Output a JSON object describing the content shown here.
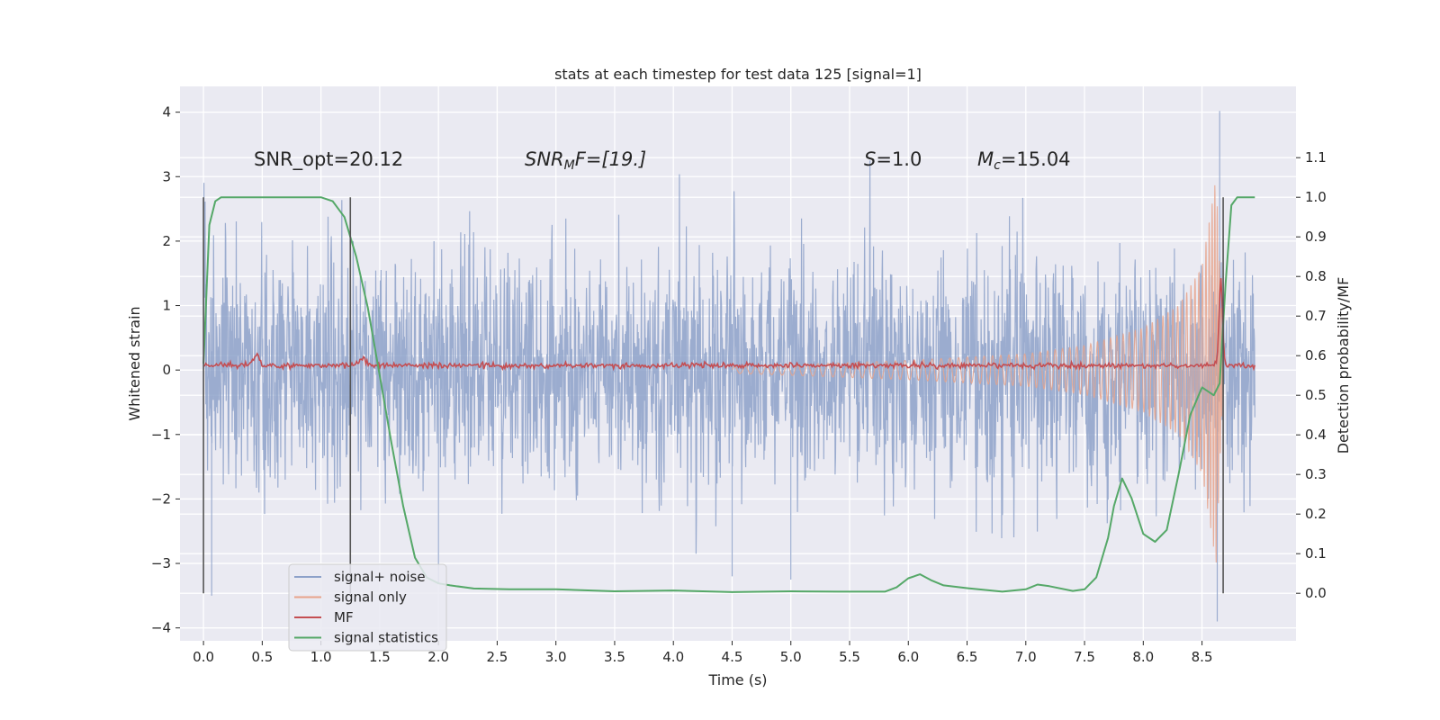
{
  "chart_data": {
    "type": "line",
    "title": "stats at each timestep for test data 125 [signal=1]",
    "xlabel": "Time (s)",
    "ylabel": "Whitened strain",
    "y2label": "Detection probability/MF",
    "xlim": [
      -0.2,
      9.3
    ],
    "ylim": [
      -4.2,
      4.4
    ],
    "y2lim": [
      -0.12,
      1.28
    ],
    "xticks": [
      "0.0",
      "0.5",
      "1.0",
      "1.5",
      "2.0",
      "2.5",
      "3.0",
      "3.5",
      "4.0",
      "4.5",
      "5.0",
      "5.5",
      "6.0",
      "6.5",
      "7.0",
      "7.5",
      "8.0",
      "8.5"
    ],
    "yticks": [
      "4",
      "3",
      "2",
      "1",
      "0",
      "−1",
      "−2",
      "−3",
      "−4"
    ],
    "y2ticks": [
      "1.1",
      "1.0",
      "0.9",
      "0.8",
      "0.7",
      "0.6",
      "0.5",
      "0.4",
      "0.3",
      "0.2",
      "0.1",
      "0.0"
    ],
    "grid": true,
    "legend_position": "lower-left",
    "annotations": {
      "snr_opt": "SNR_opt=20.12",
      "snr_mf_main": "SNR",
      "snr_mf_sub": "M",
      "snr_mf_rest": "F=[19.]",
      "s_label": "S",
      "s_value": "=1.0",
      "mc_label": "M",
      "mc_sub": "c",
      "mc_value": "=15.04"
    },
    "vertical_markers": [
      0.0,
      1.25,
      8.68
    ],
    "series": [
      {
        "name": "signal+ noise",
        "color": "#8da1c9",
        "axis": "left",
        "description": "noisy whitened strain, roughly ±2 with spikes to ±3.5, ending near 9.0 s",
        "x_range": [
          0.0,
          8.95
        ],
        "typical_amplitude": 2.0,
        "spike_points": [
          [
            8.65,
            4.02
          ],
          [
            8.63,
            -3.9
          ],
          [
            0.07,
            -3.5
          ],
          [
            4.5,
            -3.2
          ],
          [
            5.0,
            -3.25
          ],
          [
            2.0,
            -3.3
          ]
        ]
      },
      {
        "name": "signal only",
        "color": "#e8a38b",
        "axis": "left",
        "description": "chirp signal with amplitude growing toward merger at ~8.65 s",
        "x_range": [
          4.5,
          8.68
        ],
        "amplitude_points": [
          [
            4.5,
            0.05
          ],
          [
            6.0,
            0.15
          ],
          [
            7.0,
            0.25
          ],
          [
            7.5,
            0.38
          ],
          [
            8.0,
            0.65
          ],
          [
            8.3,
            1.0
          ],
          [
            8.5,
            1.6
          ],
          [
            8.62,
            3.0
          ],
          [
            8.68,
            0.2
          ]
        ]
      },
      {
        "name": "MF",
        "color": "#c44e52",
        "axis": "left",
        "description": "matched filter output fluctuating slightly above zero",
        "x_range": [
          0.0,
          8.95
        ],
        "baseline": 0.07,
        "peak_points": [
          [
            0.45,
            0.22
          ],
          [
            1.35,
            0.2
          ],
          [
            8.66,
            1.4
          ]
        ]
      },
      {
        "name": "signal statistics",
        "color": "#55a868",
        "axis": "right",
        "x": [
          0.0,
          0.05,
          0.1,
          0.15,
          0.3,
          0.6,
          0.9,
          1.0,
          1.1,
          1.2,
          1.3,
          1.4,
          1.5,
          1.6,
          1.7,
          1.8,
          1.9,
          2.0,
          2.1,
          2.3,
          2.6,
          3.0,
          3.5,
          4.0,
          4.5,
          5.0,
          5.4,
          5.8,
          5.9,
          6.0,
          6.1,
          6.2,
          6.3,
          6.5,
          6.8,
          7.0,
          7.1,
          7.2,
          7.4,
          7.5,
          7.6,
          7.7,
          7.75,
          7.82,
          7.9,
          8.0,
          8.1,
          8.2,
          8.3,
          8.4,
          8.5,
          8.6,
          8.65,
          8.7,
          8.75,
          8.8,
          8.9,
          8.95
        ],
        "y": [
          0.58,
          0.93,
          0.99,
          1.0,
          1.0,
          1.0,
          1.0,
          1.0,
          0.99,
          0.95,
          0.85,
          0.72,
          0.55,
          0.38,
          0.22,
          0.09,
          0.04,
          0.025,
          0.02,
          0.012,
          0.01,
          0.01,
          0.005,
          0.007,
          0.003,
          0.005,
          0.004,
          0.004,
          0.015,
          0.038,
          0.048,
          0.032,
          0.02,
          0.013,
          0.004,
          0.01,
          0.022,
          0.018,
          0.006,
          0.01,
          0.04,
          0.14,
          0.22,
          0.29,
          0.24,
          0.15,
          0.13,
          0.16,
          0.3,
          0.45,
          0.52,
          0.5,
          0.53,
          0.78,
          0.98,
          1.0,
          1.0,
          1.0
        ]
      }
    ]
  }
}
